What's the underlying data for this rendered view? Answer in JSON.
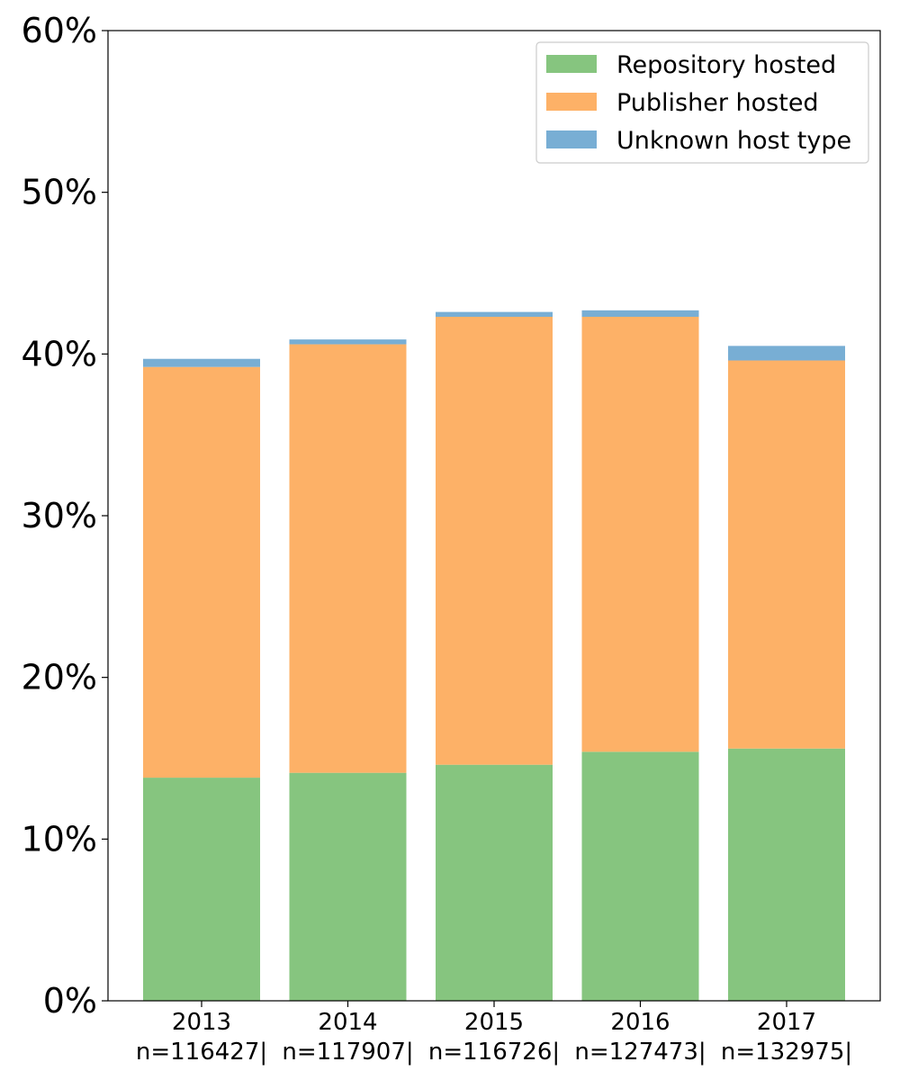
{
  "chart_data": {
    "type": "bar",
    "stacked": true,
    "title": "",
    "xlabel": "",
    "ylabel": "",
    "ylim": [
      0,
      60
    ],
    "y_ticks": [
      "0%",
      "10%",
      "20%",
      "30%",
      "40%",
      "50%",
      "60%"
    ],
    "y_tick_values": [
      0,
      10,
      20,
      30,
      40,
      50,
      60
    ],
    "categories": [
      "2013",
      "2014",
      "2015",
      "2016",
      "2017"
    ],
    "category_sublabels": [
      "n=116427|",
      "n=117907|",
      "n=116726|",
      "n=127473|",
      "n=132975|"
    ],
    "grid": false,
    "legend_position": "top-right",
    "series": [
      {
        "name": "Repository hosted",
        "color": "#86c57f",
        "values": [
          13.8,
          14.1,
          14.6,
          15.4,
          15.6
        ]
      },
      {
        "name": "Publisher hosted",
        "color": "#fdb167",
        "values": [
          25.4,
          26.5,
          27.7,
          26.9,
          24.0
        ]
      },
      {
        "name": "Unknown host type",
        "color": "#78aed4",
        "values": [
          0.5,
          0.3,
          0.3,
          0.4,
          0.9
        ]
      }
    ]
  }
}
